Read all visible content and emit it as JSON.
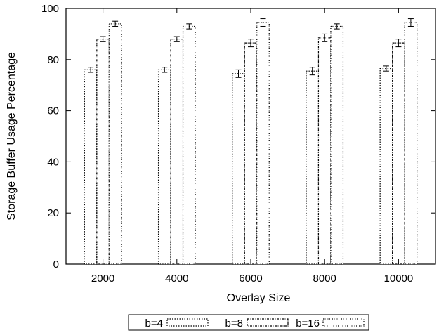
{
  "chart_data": {
    "type": "bar",
    "title": "",
    "xlabel": "Overlay Size",
    "ylabel": "Storage Buffer Usage Percentage",
    "categories": [
      "2000",
      "4000",
      "6000",
      "8000",
      "10000"
    ],
    "ylim": [
      0,
      100
    ],
    "yticks": [
      "0",
      "20",
      "40",
      "60",
      "80",
      "100"
    ],
    "grid": false,
    "legend_position": "bottom",
    "error_bars": true,
    "series": [
      {
        "name": "b=4",
        "values": [
          76,
          76,
          74.5,
          75.5,
          76.5
        ],
        "errors": [
          1.0,
          1.0,
          1.5,
          1.5,
          1.0
        ]
      },
      {
        "name": "b=8",
        "values": [
          88,
          88,
          86.5,
          88.5,
          86.5
        ],
        "errors": [
          1.0,
          1.0,
          1.5,
          1.5,
          1.5
        ]
      },
      {
        "name": "b=16",
        "values": [
          94,
          93,
          94.5,
          93,
          94.5
        ],
        "errors": [
          1.0,
          1.0,
          1.5,
          1.0,
          1.5
        ]
      }
    ],
    "colors": {
      "bar_stroke": "#000000",
      "bar_fill": "#ffffff",
      "axis": "#000000"
    }
  }
}
